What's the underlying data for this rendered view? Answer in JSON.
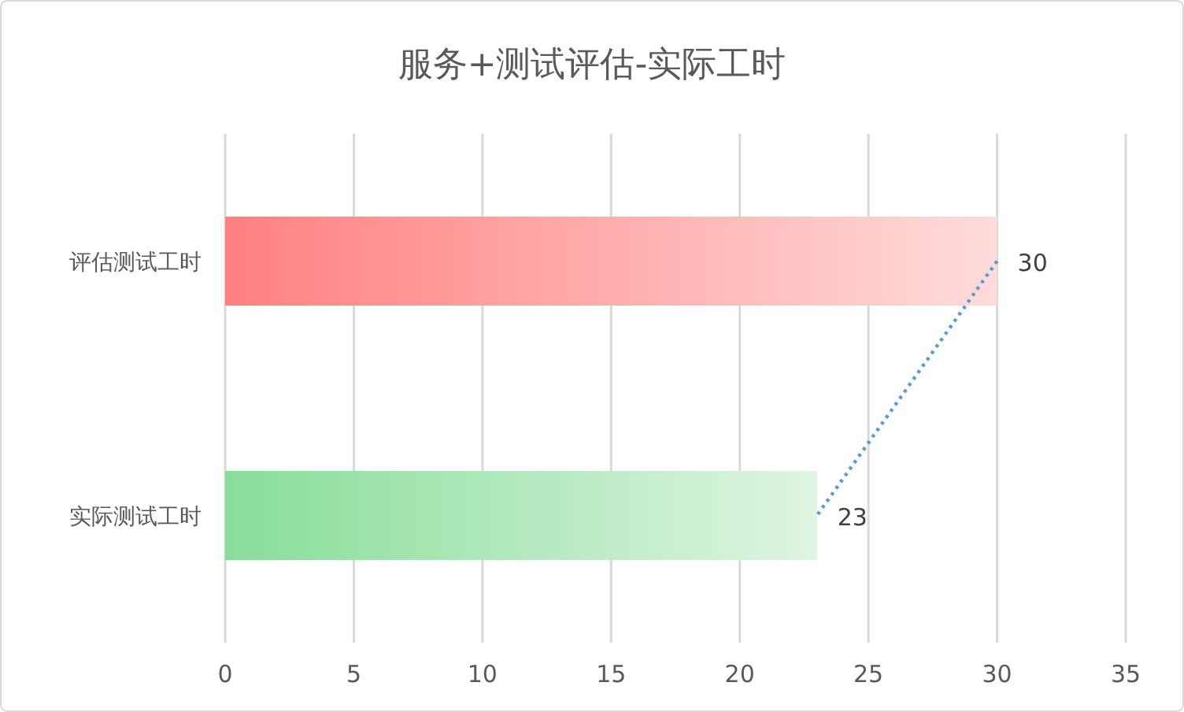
{
  "chart_data": {
    "type": "bar",
    "orientation": "horizontal",
    "title": "服务+测试评估-实际工时",
    "categories": [
      "评估测试工时",
      "实际测试工时"
    ],
    "series": [
      {
        "colors": [
          "#ff8080",
          "#88dd99"
        ],
        "values": [
          30,
          23
        ],
        "value_labels": [
          "30",
          "23"
        ]
      },
      {
        "type": "line",
        "color": "#5b9bd5",
        "line_style": "dotted",
        "values": [
          30,
          23
        ]
      }
    ],
    "xlim": [
      0,
      35
    ],
    "xticks": [
      0,
      5,
      10,
      15,
      20,
      25,
      30,
      35
    ],
    "grid": "x"
  }
}
